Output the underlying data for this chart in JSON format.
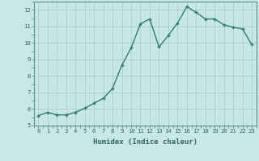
{
  "x": [
    0,
    1,
    2,
    3,
    4,
    5,
    6,
    7,
    8,
    9,
    10,
    11,
    12,
    13,
    14,
    15,
    16,
    17,
    18,
    19,
    20,
    21,
    22,
    23
  ],
  "y": [
    5.6,
    5.8,
    5.65,
    5.65,
    5.8,
    6.05,
    6.35,
    6.65,
    7.25,
    8.65,
    9.7,
    11.15,
    11.45,
    9.75,
    10.45,
    11.2,
    12.2,
    11.85,
    11.45,
    11.45,
    11.1,
    10.95,
    10.85,
    9.9
  ],
  "line_color": "#2e7d6e",
  "marker": "+",
  "bg_color": "#c8e8e8",
  "grid_major_color": "#b0d0d0",
  "grid_minor_color": "#c0dede",
  "xlabel": "Humidex (Indice chaleur)",
  "xlim": [
    -0.5,
    23.5
  ],
  "ylim": [
    5.0,
    12.5
  ],
  "yticks": [
    5,
    6,
    7,
    8,
    9,
    10,
    11,
    12
  ],
  "xticks": [
    0,
    1,
    2,
    3,
    4,
    5,
    6,
    7,
    8,
    9,
    10,
    11,
    12,
    13,
    14,
    15,
    16,
    17,
    18,
    19,
    20,
    21,
    22,
    23
  ],
  "font_color": "#336655",
  "spine_color": "#5a9080",
  "linewidth": 1.0,
  "markersize": 3.5,
  "markeredgewidth": 1.0,
  "tick_fontsize": 5.2,
  "xlabel_fontsize": 6.5
}
